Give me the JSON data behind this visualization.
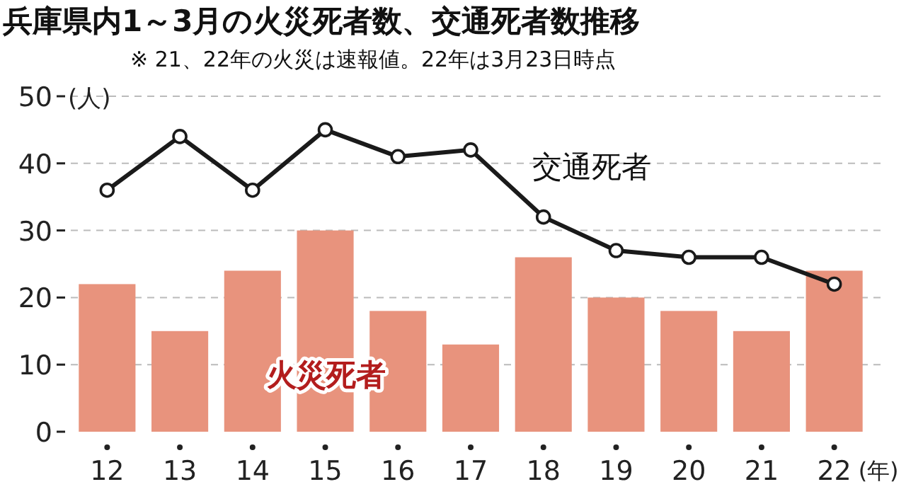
{
  "chart_data": {
    "type": "bar",
    "title": "兵庫県内1～3月の火災死者数、交通死者数推移",
    "subtitle": "※ 21、22年の火災は速報値。22年は3月23日時点",
    "ylabel": "(人)",
    "xlabel": "(年)",
    "categories": [
      "12",
      "13",
      "14",
      "15",
      "16",
      "17",
      "18",
      "19",
      "20",
      "21",
      "22"
    ],
    "series": [
      {
        "name": "火災死者",
        "color": "#e8937d",
        "values": [
          22,
          15,
          24,
          30,
          18,
          13,
          26,
          20,
          18,
          15,
          24
        ]
      },
      {
        "name": "交通死者",
        "type": "line",
        "color": "#1a1a1a",
        "marker": "circle",
        "values": [
          36,
          44,
          36,
          45,
          41,
          42,
          32,
          27,
          26,
          26,
          22
        ]
      }
    ],
    "ylim": [
      0,
      50
    ],
    "yticks": [
      0,
      10,
      20,
      30,
      40,
      50
    ],
    "grid": "y"
  }
}
